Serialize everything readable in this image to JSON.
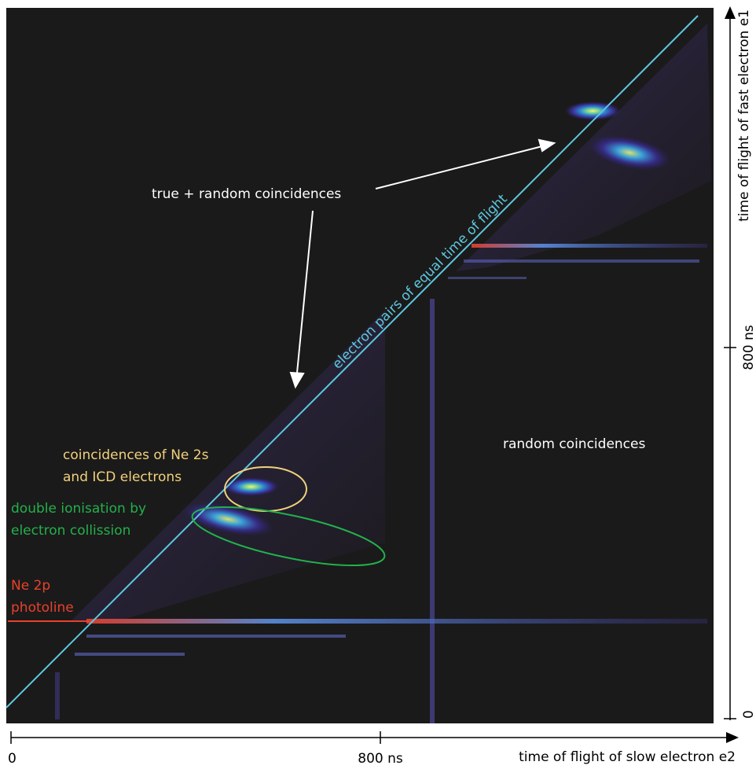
{
  "chart_data": {
    "type": "heatmap",
    "title": "",
    "xlabel": "time of flight of slow electron e2",
    "ylabel": "time of flight of fast electron e1",
    "x_ticks": [
      {
        "value": 0,
        "label": "0"
      },
      {
        "value": 800,
        "label": "800 ns"
      }
    ],
    "y_ticks": [
      {
        "value": 0,
        "label": "0"
      },
      {
        "value": 800,
        "label": "800 ns"
      }
    ],
    "xlim": [
      0,
      1560
    ],
    "ylim": [
      0,
      1560
    ],
    "grid": false,
    "colors": {
      "background": "#1b1a1a",
      "diagonal": "#5ec8e0",
      "ne2s_icd": "#f0d27a",
      "double_ionisation": "#22b14c",
      "photoline": "#e8412c",
      "annotation": "#ffffff"
    },
    "diagonal_label": "electron pairs of equal time of flight",
    "annotations": [
      {
        "text": "true + random coincidences",
        "color": "#ffffff"
      },
      {
        "text": "random coincidences",
        "color": "#ffffff"
      }
    ],
    "regions": [
      {
        "lines": [
          "coincidences of Ne 2s",
          "and ICD electrons"
        ],
        "color": "#f0d27a",
        "x": 520,
        "y": 500
      },
      {
        "lines": [
          "double ionisation by",
          "electron collission"
        ],
        "color": "#22b14c",
        "x": 570,
        "y": 430
      },
      {
        "lines": [
          "Ne 2p",
          "photoline"
        ],
        "color": "#e8412c",
        "x": 0,
        "y": 225
      }
    ],
    "hotspots": [
      {
        "x": 520,
        "y": 500,
        "intensity": 1.0
      },
      {
        "x": 470,
        "y": 430,
        "intensity": 0.9
      },
      {
        "x": 1260,
        "y": 1310,
        "intensity": 1.0
      },
      {
        "x": 1340,
        "y": 1220,
        "intensity": 0.9
      }
    ]
  }
}
